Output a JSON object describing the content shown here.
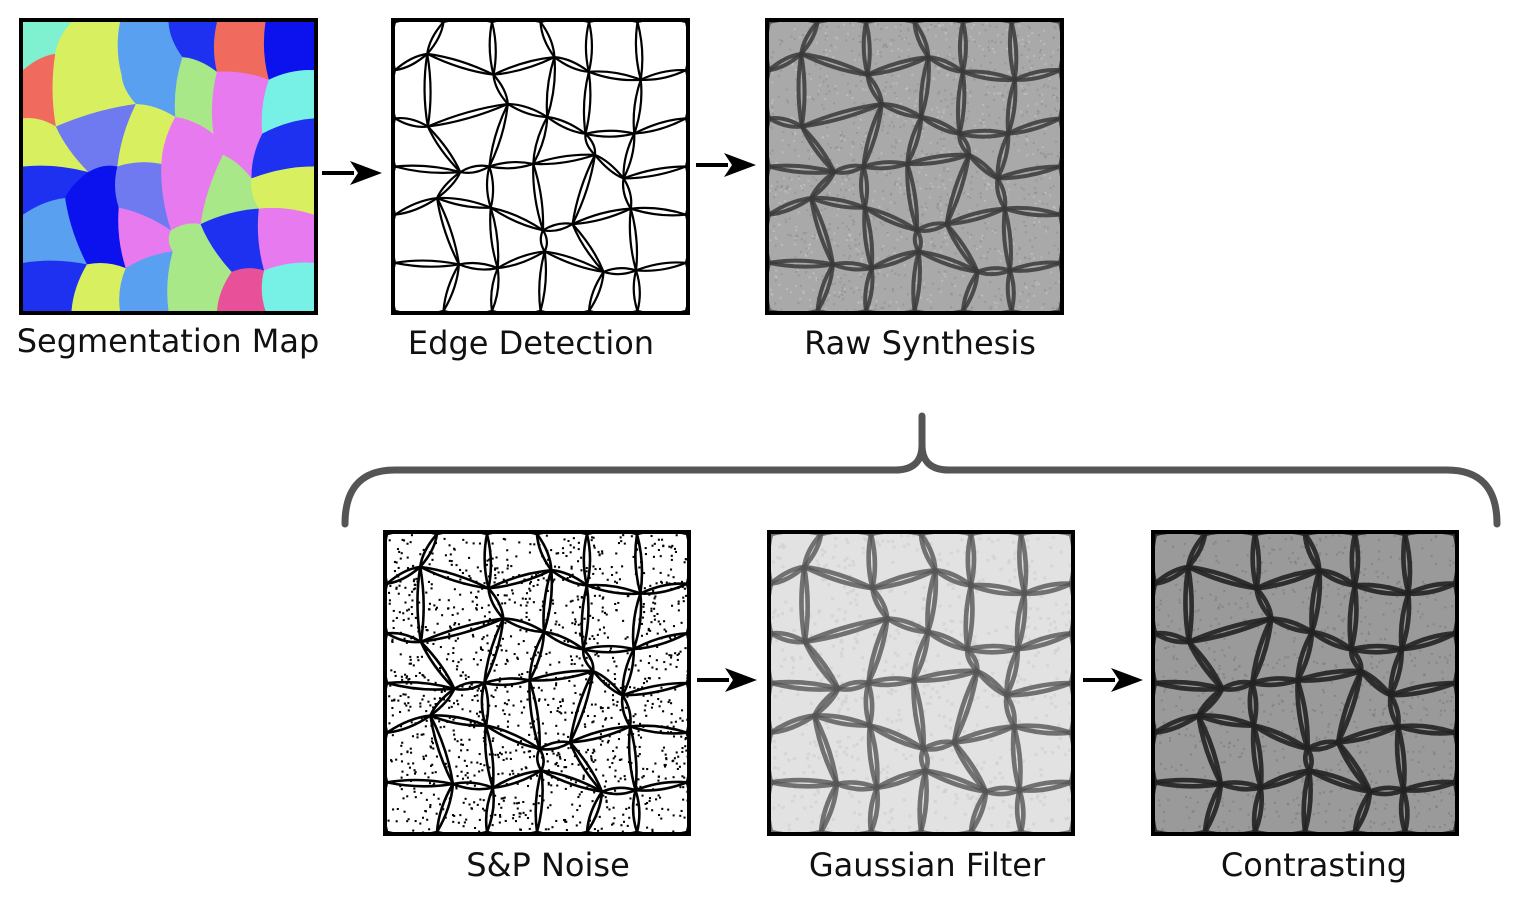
{
  "diagram": {
    "top_row": [
      {
        "id": "seg",
        "label": "Segmentation Map"
      },
      {
        "id": "edge",
        "label": "Edge Detection"
      },
      {
        "id": "raw",
        "label": "Raw Synthesis"
      }
    ],
    "bottom_row": [
      {
        "id": "sp",
        "label": "S&P Noise"
      },
      {
        "id": "gauss",
        "label": "Gaussian Filter"
      },
      {
        "id": "contrast",
        "label": "Contrasting"
      }
    ],
    "colors": {
      "arrow": "#000000",
      "bracket": "#555555",
      "segment_palette": [
        "#8cf07a",
        "#6f7af0",
        "#0b12ee",
        "#7ff0d0",
        "#e87af0",
        "#f06a5e",
        "#5aa0f0",
        "#e8509a",
        "#d8f060",
        "#1e30f0",
        "#a8e888",
        "#77f0e6"
      ]
    }
  }
}
